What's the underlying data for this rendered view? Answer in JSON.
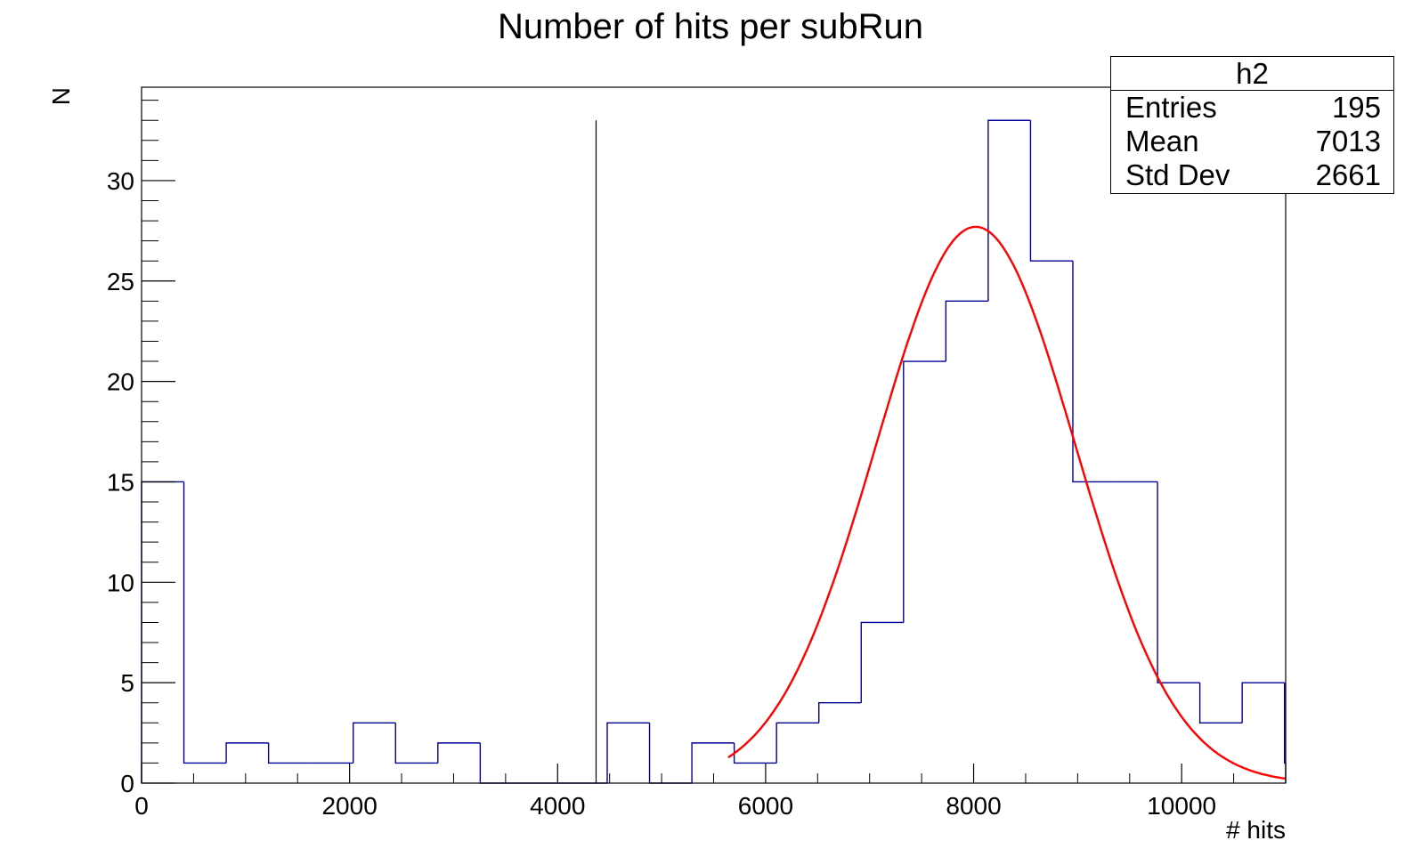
{
  "chart_data": {
    "type": "histogram",
    "title": "Number of hits per subRun",
    "xlabel": "# hits",
    "ylabel": "N",
    "xlim": [
      0,
      11000
    ],
    "ylim": [
      0,
      34.65
    ],
    "x_ticks": [
      0,
      2000,
      4000,
      6000,
      8000,
      10000
    ],
    "y_ticks": [
      0,
      5,
      10,
      15,
      20,
      25,
      30
    ],
    "bin_width": 407,
    "bin_counts": [
      15,
      1,
      2,
      1,
      1,
      3,
      1,
      2,
      0,
      0,
      0,
      3,
      0,
      2,
      1,
      3,
      4,
      8,
      21,
      24,
      33,
      26,
      15,
      15,
      5,
      3,
      5,
      1
    ],
    "vertical_line_x": 4370,
    "vertical_line_top": 33,
    "fit": {
      "type": "gaussian",
      "amplitude": 27.7,
      "mean": 8020,
      "sigma": 960,
      "x_range": [
        5640,
        11000
      ],
      "color": "#ff0000"
    },
    "histogram_color": "#000099",
    "grid": false,
    "legend": "top-right"
  },
  "stats_box": {
    "name": "h2",
    "rows": [
      {
        "label": "Entries",
        "value": "195"
      },
      {
        "label": "Mean",
        "value": "7013"
      },
      {
        "label": "Std Dev",
        "value": "2661"
      }
    ]
  }
}
